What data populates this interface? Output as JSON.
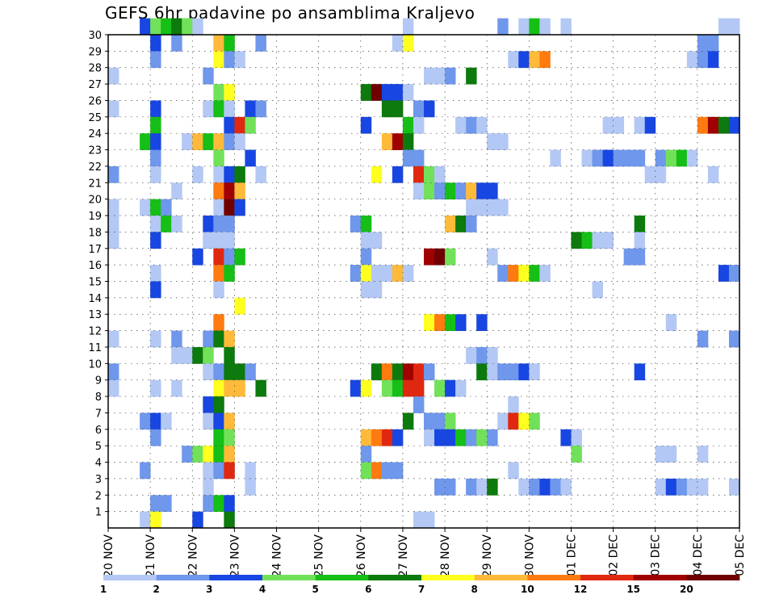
{
  "chart_data": {
    "type": "heatmap",
    "title": "GEFS 6hr padavine po ansamblima Kraljevo",
    "xlabel": "",
    "ylabel": "",
    "y_ticks": [
      "1",
      "2",
      "3",
      "4",
      "5",
      "6",
      "7",
      "8",
      "9",
      "10",
      "11",
      "12",
      "13",
      "14",
      "15",
      "16",
      "17",
      "18",
      "19",
      "20",
      "21",
      "22",
      "23",
      "24",
      "25",
      "26",
      "27",
      "28",
      "29",
      "30"
    ],
    "x_ticks": [
      "20 NOV",
      "21 NOV",
      "22 NOV",
      "23 NOV",
      "24 NOV",
      "25 NOV",
      "26 NOV",
      "27 NOV",
      "28 NOV",
      "29 NOV",
      "30 NOV",
      "01 DEC",
      "02 DEC",
      "03 DEC",
      "04 DEC",
      "05 DEC"
    ],
    "time_steps": 60,
    "steps_per_day": 4,
    "members": 30,
    "legend": {
      "boundaries": [
        "1",
        "2",
        "3",
        "4",
        "5",
        "6",
        "7",
        "8",
        "10",
        "12",
        "15",
        "20"
      ],
      "colors": [
        "#b3c8f4",
        "#6f97ec",
        "#1846e2",
        "#72e15a",
        "#16bf16",
        "#0c7a0c",
        "#ffff20",
        "#ffba3a",
        "#ff7b10",
        "#e02810",
        "#a00000",
        "#700000"
      ]
    },
    "cells": [
      [
        30,
        3,
        2
      ],
      [
        30,
        4,
        3
      ],
      [
        30,
        5,
        4
      ],
      [
        30,
        6,
        5
      ],
      [
        30,
        7,
        3
      ],
      [
        30,
        8,
        0
      ],
      [
        30,
        28,
        0
      ],
      [
        30,
        37,
        1
      ],
      [
        30,
        39,
        0
      ],
      [
        30,
        40,
        4
      ],
      [
        30,
        41,
        0
      ],
      [
        30,
        43,
        0
      ],
      [
        30,
        58,
        0
      ],
      [
        30,
        59,
        0
      ],
      [
        29,
        4,
        2
      ],
      [
        29,
        6,
        1
      ],
      [
        29,
        10,
        7
      ],
      [
        29,
        11,
        4
      ],
      [
        29,
        14,
        1
      ],
      [
        29,
        27,
        0
      ],
      [
        29,
        28,
        6
      ],
      [
        29,
        56,
        1
      ],
      [
        29,
        57,
        1
      ],
      [
        28,
        4,
        1
      ],
      [
        28,
        10,
        6
      ],
      [
        28,
        11,
        1
      ],
      [
        28,
        12,
        0
      ],
      [
        28,
        38,
        0
      ],
      [
        28,
        39,
        2
      ],
      [
        28,
        40,
        7
      ],
      [
        28,
        41,
        8
      ],
      [
        28,
        55,
        0
      ],
      [
        28,
        56,
        1
      ],
      [
        28,
        57,
        2
      ],
      [
        27,
        0,
        0
      ],
      [
        27,
        9,
        1
      ],
      [
        27,
        30,
        0
      ],
      [
        27,
        31,
        0
      ],
      [
        27,
        32,
        1
      ],
      [
        27,
        34,
        5
      ],
      [
        26,
        10,
        3
      ],
      [
        26,
        11,
        6
      ],
      [
        26,
        24,
        5
      ],
      [
        26,
        25,
        11
      ],
      [
        26,
        26,
        2
      ],
      [
        26,
        27,
        2
      ],
      [
        26,
        28,
        0
      ],
      [
        25,
        0,
        0
      ],
      [
        25,
        4,
        2
      ],
      [
        25,
        9,
        0
      ],
      [
        25,
        10,
        4
      ],
      [
        25,
        11,
        0
      ],
      [
        25,
        13,
        2
      ],
      [
        25,
        14,
        1
      ],
      [
        25,
        26,
        5
      ],
      [
        25,
        27,
        5
      ],
      [
        25,
        29,
        1
      ],
      [
        25,
        30,
        2
      ],
      [
        24,
        4,
        4
      ],
      [
        24,
        11,
        2
      ],
      [
        24,
        12,
        9
      ],
      [
        24,
        13,
        3
      ],
      [
        24,
        24,
        2
      ],
      [
        24,
        28,
        4
      ],
      [
        24,
        29,
        0
      ],
      [
        24,
        33,
        0
      ],
      [
        24,
        34,
        1
      ],
      [
        24,
        35,
        0
      ],
      [
        24,
        47,
        0
      ],
      [
        24,
        48,
        0
      ],
      [
        24,
        50,
        0
      ],
      [
        24,
        51,
        2
      ],
      [
        24,
        56,
        8
      ],
      [
        24,
        57,
        10
      ],
      [
        24,
        58,
        5
      ],
      [
        24,
        59,
        2
      ],
      [
        23,
        3,
        4
      ],
      [
        23,
        4,
        2
      ],
      [
        23,
        7,
        0
      ],
      [
        23,
        8,
        7
      ],
      [
        23,
        9,
        4
      ],
      [
        23,
        10,
        7
      ],
      [
        23,
        11,
        1
      ],
      [
        23,
        12,
        0
      ],
      [
        23,
        26,
        7
      ],
      [
        23,
        27,
        10
      ],
      [
        23,
        28,
        5
      ],
      [
        23,
        36,
        0
      ],
      [
        23,
        37,
        0
      ],
      [
        22,
        4,
        1
      ],
      [
        22,
        10,
        3
      ],
      [
        22,
        13,
        2
      ],
      [
        22,
        28,
        1
      ],
      [
        22,
        29,
        1
      ],
      [
        22,
        42,
        0
      ],
      [
        22,
        45,
        0
      ],
      [
        22,
        46,
        1
      ],
      [
        22,
        47,
        2
      ],
      [
        22,
        48,
        1
      ],
      [
        22,
        49,
        1
      ],
      [
        22,
        50,
        1
      ],
      [
        22,
        52,
        1
      ],
      [
        22,
        53,
        3
      ],
      [
        22,
        54,
        4
      ],
      [
        22,
        55,
        0
      ],
      [
        21,
        0,
        1
      ],
      [
        21,
        4,
        0
      ],
      [
        21,
        8,
        0
      ],
      [
        21,
        10,
        0
      ],
      [
        21,
        11,
        2
      ],
      [
        21,
        12,
        5
      ],
      [
        21,
        14,
        0
      ],
      [
        21,
        25,
        6
      ],
      [
        21,
        27,
        2
      ],
      [
        21,
        29,
        9
      ],
      [
        21,
        30,
        3
      ],
      [
        21,
        31,
        0
      ],
      [
        21,
        51,
        0
      ],
      [
        21,
        52,
        0
      ],
      [
        21,
        57,
        0
      ],
      [
        20,
        6,
        0
      ],
      [
        20,
        10,
        8
      ],
      [
        20,
        11,
        10
      ],
      [
        20,
        12,
        7
      ],
      [
        20,
        29,
        0
      ],
      [
        20,
        30,
        3
      ],
      [
        20,
        31,
        1
      ],
      [
        20,
        32,
        4
      ],
      [
        20,
        33,
        1
      ],
      [
        20,
        34,
        7
      ],
      [
        20,
        35,
        2
      ],
      [
        20,
        36,
        2
      ],
      [
        19,
        0,
        0
      ],
      [
        19,
        3,
        0
      ],
      [
        19,
        4,
        4
      ],
      [
        19,
        5,
        1
      ],
      [
        19,
        10,
        0
      ],
      [
        19,
        11,
        11
      ],
      [
        19,
        12,
        2
      ],
      [
        19,
        34,
        0
      ],
      [
        19,
        35,
        0
      ],
      [
        19,
        36,
        0
      ],
      [
        19,
        37,
        0
      ],
      [
        18,
        0,
        0
      ],
      [
        18,
        4,
        0
      ],
      [
        18,
        5,
        4
      ],
      [
        18,
        6,
        0
      ],
      [
        18,
        9,
        2
      ],
      [
        18,
        10,
        1
      ],
      [
        18,
        11,
        1
      ],
      [
        18,
        23,
        1
      ],
      [
        18,
        24,
        4
      ],
      [
        18,
        32,
        7
      ],
      [
        18,
        33,
        5
      ],
      [
        18,
        34,
        1
      ],
      [
        18,
        50,
        5
      ],
      [
        17,
        0,
        0
      ],
      [
        17,
        4,
        2
      ],
      [
        17,
        9,
        0
      ],
      [
        17,
        10,
        0
      ],
      [
        17,
        11,
        0
      ],
      [
        17,
        24,
        0
      ],
      [
        17,
        25,
        0
      ],
      [
        17,
        44,
        5
      ],
      [
        17,
        45,
        4
      ],
      [
        17,
        46,
        0
      ],
      [
        17,
        47,
        0
      ],
      [
        17,
        50,
        0
      ],
      [
        16,
        8,
        2
      ],
      [
        16,
        10,
        9
      ],
      [
        16,
        11,
        1
      ],
      [
        16,
        12,
        4
      ],
      [
        16,
        24,
        1
      ],
      [
        16,
        30,
        10
      ],
      [
        16,
        31,
        11
      ],
      [
        16,
        32,
        3
      ],
      [
        16,
        36,
        0
      ],
      [
        16,
        49,
        1
      ],
      [
        16,
        50,
        1
      ],
      [
        15,
        4,
        0
      ],
      [
        15,
        10,
        8
      ],
      [
        15,
        11,
        4
      ],
      [
        15,
        23,
        1
      ],
      [
        15,
        24,
        6
      ],
      [
        15,
        25,
        0
      ],
      [
        15,
        26,
        0
      ],
      [
        15,
        27,
        7
      ],
      [
        15,
        28,
        0
      ],
      [
        15,
        37,
        1
      ],
      [
        15,
        38,
        8
      ],
      [
        15,
        39,
        6
      ],
      [
        15,
        40,
        4
      ],
      [
        15,
        41,
        0
      ],
      [
        15,
        58,
        2
      ],
      [
        15,
        59,
        1
      ],
      [
        14,
        4,
        2
      ],
      [
        14,
        10,
        0
      ],
      [
        14,
        24,
        0
      ],
      [
        14,
        25,
        0
      ],
      [
        14,
        46,
        0
      ],
      [
        13,
        12,
        6
      ],
      [
        12,
        10,
        8
      ],
      [
        12,
        30,
        6
      ],
      [
        12,
        31,
        8
      ],
      [
        12,
        32,
        4
      ],
      [
        12,
        33,
        2
      ],
      [
        12,
        35,
        2
      ],
      [
        12,
        53,
        0
      ],
      [
        11,
        0,
        0
      ],
      [
        11,
        4,
        0
      ],
      [
        11,
        6,
        1
      ],
      [
        11,
        9,
        1
      ],
      [
        11,
        10,
        5
      ],
      [
        11,
        11,
        7
      ],
      [
        11,
        56,
        1
      ],
      [
        11,
        59,
        1
      ],
      [
        10,
        6,
        0
      ],
      [
        10,
        7,
        0
      ],
      [
        10,
        8,
        5
      ],
      [
        10,
        9,
        3
      ],
      [
        10,
        11,
        5
      ],
      [
        10,
        34,
        0
      ],
      [
        10,
        35,
        1
      ],
      [
        10,
        36,
        0
      ],
      [
        9,
        0,
        1
      ],
      [
        9,
        9,
        0
      ],
      [
        9,
        10,
        1
      ],
      [
        9,
        11,
        5
      ],
      [
        9,
        12,
        5
      ],
      [
        9,
        13,
        1
      ],
      [
        9,
        25,
        5
      ],
      [
        9,
        26,
        8
      ],
      [
        9,
        27,
        5
      ],
      [
        9,
        28,
        10
      ],
      [
        9,
        29,
        9
      ],
      [
        9,
        30,
        1
      ],
      [
        9,
        35,
        5
      ],
      [
        9,
        36,
        0
      ],
      [
        9,
        37,
        1
      ],
      [
        9,
        38,
        1
      ],
      [
        9,
        39,
        2
      ],
      [
        9,
        40,
        0
      ],
      [
        9,
        50,
        2
      ],
      [
        8,
        0,
        0
      ],
      [
        8,
        4,
        0
      ],
      [
        8,
        6,
        0
      ],
      [
        8,
        10,
        6
      ],
      [
        8,
        11,
        7
      ],
      [
        8,
        12,
        7
      ],
      [
        8,
        14,
        5
      ],
      [
        8,
        23,
        2
      ],
      [
        8,
        24,
        6
      ],
      [
        8,
        26,
        3
      ],
      [
        8,
        27,
        4
      ],
      [
        8,
        28,
        9
      ],
      [
        8,
        29,
        9
      ],
      [
        8,
        31,
        3
      ],
      [
        8,
        32,
        2
      ],
      [
        8,
        33,
        0
      ],
      [
        7,
        9,
        2
      ],
      [
        7,
        10,
        5
      ],
      [
        7,
        29,
        1
      ],
      [
        7,
        38,
        0
      ],
      [
        6,
        3,
        1
      ],
      [
        6,
        4,
        2
      ],
      [
        6,
        5,
        0
      ],
      [
        6,
        9,
        0
      ],
      [
        6,
        10,
        2
      ],
      [
        6,
        11,
        7
      ],
      [
        6,
        28,
        5
      ],
      [
        6,
        30,
        1
      ],
      [
        6,
        31,
        1
      ],
      [
        6,
        32,
        3
      ],
      [
        6,
        37,
        0
      ],
      [
        6,
        38,
        9
      ],
      [
        6,
        39,
        6
      ],
      [
        6,
        40,
        3
      ],
      [
        5,
        4,
        1
      ],
      [
        5,
        10,
        4
      ],
      [
        5,
        11,
        3
      ],
      [
        5,
        24,
        7
      ],
      [
        5,
        25,
        8
      ],
      [
        5,
        26,
        9
      ],
      [
        5,
        27,
        2
      ],
      [
        5,
        30,
        0
      ],
      [
        5,
        31,
        2
      ],
      [
        5,
        32,
        2
      ],
      [
        5,
        33,
        4
      ],
      [
        5,
        34,
        1
      ],
      [
        5,
        35,
        3
      ],
      [
        5,
        36,
        1
      ],
      [
        5,
        43,
        2
      ],
      [
        5,
        44,
        0
      ],
      [
        4,
        7,
        1
      ],
      [
        4,
        8,
        3
      ],
      [
        4,
        9,
        6
      ],
      [
        4,
        10,
        4
      ],
      [
        4,
        11,
        7
      ],
      [
        4,
        24,
        1
      ],
      [
        4,
        44,
        3
      ],
      [
        4,
        52,
        0
      ],
      [
        4,
        53,
        0
      ],
      [
        4,
        56,
        0
      ],
      [
        3,
        3,
        1
      ],
      [
        3,
        9,
        0
      ],
      [
        3,
        10,
        1
      ],
      [
        3,
        11,
        9
      ],
      [
        3,
        13,
        0
      ],
      [
        3,
        24,
        3
      ],
      [
        3,
        25,
        8
      ],
      [
        3,
        26,
        1
      ],
      [
        3,
        27,
        1
      ],
      [
        3,
        38,
        0
      ],
      [
        2,
        9,
        0
      ],
      [
        2,
        13,
        0
      ],
      [
        2,
        31,
        1
      ],
      [
        2,
        32,
        1
      ],
      [
        2,
        34,
        1
      ],
      [
        2,
        35,
        0
      ],
      [
        2,
        36,
        5
      ],
      [
        2,
        39,
        0
      ],
      [
        2,
        40,
        1
      ],
      [
        2,
        41,
        2
      ],
      [
        2,
        42,
        1
      ],
      [
        2,
        43,
        0
      ],
      [
        2,
        52,
        0
      ],
      [
        2,
        53,
        2
      ],
      [
        2,
        54,
        1
      ],
      [
        2,
        55,
        0
      ],
      [
        2,
        56,
        0
      ],
      [
        2,
        59,
        0
      ],
      [
        1,
        4,
        1
      ],
      [
        1,
        5,
        1
      ],
      [
        1,
        9,
        1
      ],
      [
        1,
        10,
        4
      ],
      [
        1,
        11,
        2
      ],
      [
        0,
        3,
        0
      ],
      [
        0,
        4,
        6
      ],
      [
        0,
        8,
        2
      ],
      [
        0,
        11,
        5
      ],
      [
        0,
        29,
        0
      ],
      [
        0,
        30,
        0
      ]
    ]
  }
}
